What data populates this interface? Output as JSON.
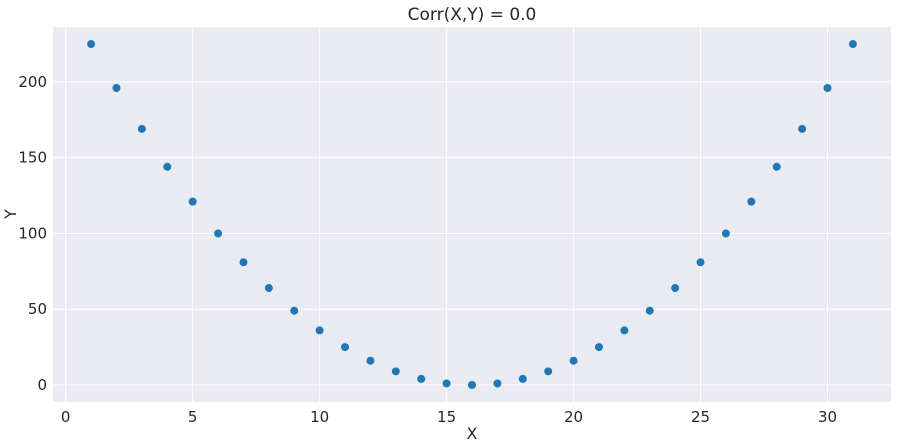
{
  "chart_data": {
    "type": "scatter",
    "title": "Corr(X,Y) = 0.0",
    "xlabel": "X",
    "ylabel": "Y",
    "xlim": [
      -0.5,
      32.5
    ],
    "ylim": [
      -11.25,
      236.25
    ],
    "xticks": [
      0,
      5,
      10,
      15,
      20,
      25,
      30
    ],
    "yticks": [
      0,
      50,
      100,
      150,
      200
    ],
    "grid": true,
    "background": "#eaeaf2",
    "grid_color": "#ffffff",
    "marker_color": "#1f77b4",
    "x": [
      1,
      2,
      3,
      4,
      5,
      6,
      7,
      8,
      9,
      10,
      11,
      12,
      13,
      14,
      15,
      16,
      17,
      18,
      19,
      20,
      21,
      22,
      23,
      24,
      25,
      26,
      27,
      28,
      29,
      30,
      31
    ],
    "y": [
      225,
      196,
      169,
      144,
      121,
      100,
      81,
      64,
      49,
      36,
      25,
      16,
      9,
      4,
      1,
      0,
      1,
      4,
      9,
      16,
      25,
      36,
      49,
      64,
      81,
      100,
      121,
      144,
      169,
      196,
      225
    ]
  }
}
